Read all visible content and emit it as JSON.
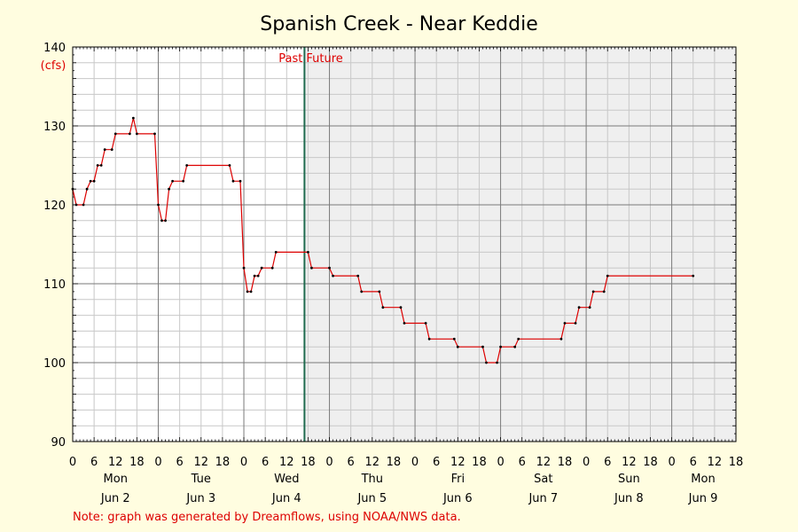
{
  "chart_data": {
    "type": "line",
    "title": "Spanish Creek - Near Keddie",
    "ylabel": "(cfs)",
    "ylim": [
      90,
      140
    ],
    "yticks": [
      90,
      100,
      110,
      120,
      130,
      140
    ],
    "xlim_hours": [
      0,
      186
    ],
    "hour_tick_labels": [
      "0",
      "6",
      "12",
      "18"
    ],
    "days": [
      {
        "dow": "Mon",
        "date": "Jun 2"
      },
      {
        "dow": "Tue",
        "date": "Jun 3"
      },
      {
        "dow": "Wed",
        "date": "Jun 4"
      },
      {
        "dow": "Thu",
        "date": "Jun 5"
      },
      {
        "dow": "Fri",
        "date": "Jun 6"
      },
      {
        "dow": "Sat",
        "date": "Jun 7"
      },
      {
        "dow": "Sun",
        "date": "Jun 8"
      },
      {
        "dow": "Mon",
        "date": "Jun 9"
      }
    ],
    "now_hour": 65,
    "past_label": "Past",
    "future_label": "Future",
    "grid": true,
    "series": [
      {
        "color": "#dd0000",
        "points": [
          [
            0,
            122
          ],
          [
            1,
            120
          ],
          [
            3,
            120
          ],
          [
            4,
            122
          ],
          [
            5,
            123
          ],
          [
            6,
            123
          ],
          [
            7,
            125
          ],
          [
            8,
            125
          ],
          [
            9,
            127
          ],
          [
            11,
            127
          ],
          [
            12,
            129
          ],
          [
            16,
            129
          ],
          [
            17,
            131
          ],
          [
            18,
            129
          ],
          [
            23,
            129
          ],
          [
            24,
            120
          ],
          [
            25,
            118
          ],
          [
            26,
            118
          ],
          [
            27,
            122
          ],
          [
            28,
            123
          ],
          [
            31,
            123
          ],
          [
            32,
            125
          ],
          [
            44,
            125
          ],
          [
            45,
            123
          ],
          [
            47,
            123
          ],
          [
            48,
            112
          ],
          [
            49,
            109
          ],
          [
            50,
            109
          ],
          [
            51,
            111
          ],
          [
            52,
            111
          ],
          [
            53,
            112
          ],
          [
            56,
            112
          ],
          [
            57,
            114
          ],
          [
            66,
            114
          ],
          [
            67,
            112
          ],
          [
            72,
            112
          ],
          [
            73,
            111
          ],
          [
            80,
            111
          ],
          [
            81,
            109
          ],
          [
            86,
            109
          ],
          [
            87,
            107
          ],
          [
            92,
            107
          ],
          [
            93,
            105
          ],
          [
            99,
            105
          ],
          [
            100,
            103
          ],
          [
            107,
            103
          ],
          [
            108,
            102
          ],
          [
            115,
            102
          ],
          [
            116,
            100
          ],
          [
            119,
            100
          ],
          [
            120,
            102
          ],
          [
            124,
            102
          ],
          [
            125,
            103
          ],
          [
            137,
            103
          ],
          [
            138,
            105
          ],
          [
            141,
            105
          ],
          [
            142,
            107
          ],
          [
            145,
            107
          ],
          [
            146,
            109
          ],
          [
            149,
            109
          ],
          [
            150,
            111
          ],
          [
            174,
            111
          ]
        ]
      }
    ]
  },
  "footer": {
    "note": "Note: graph was generated by Dreamflows, using NOAA/NWS data."
  }
}
